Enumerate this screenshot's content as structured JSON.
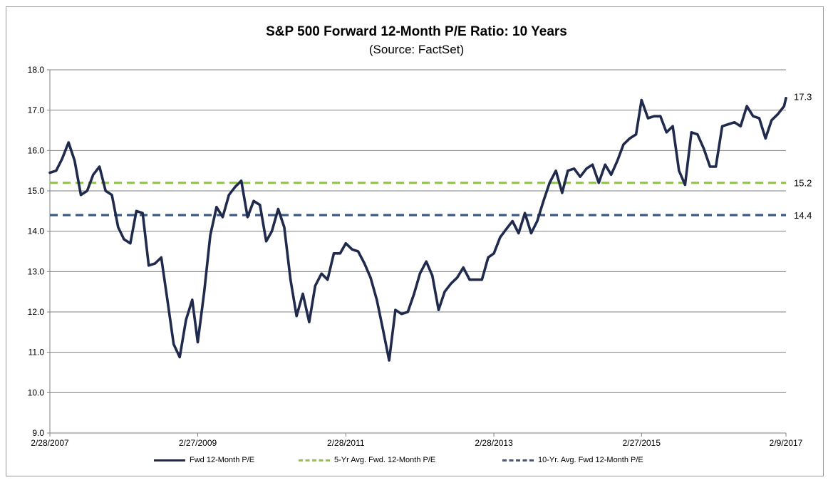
{
  "chart_data": {
    "type": "line",
    "title": "S&P 500 Forward 12-Month P/E Ratio: 10 Years",
    "subtitle": "(Source: FactSet)",
    "xlabel": "",
    "ylabel": "",
    "ylim": [
      9.0,
      18.0
    ],
    "y_ticks": [
      "9.0",
      "10.0",
      "11.0",
      "12.0",
      "13.0",
      "14.0",
      "15.0",
      "16.0",
      "17.0",
      "18.0"
    ],
    "x_tick_labels": [
      "2/28/2007",
      "2/27/2009",
      "2/28/2011",
      "2/28/2013",
      "2/27/2015",
      "2/9/2017"
    ],
    "grid": true,
    "legend_placement": "bottom",
    "series": [
      {
        "name": "Fwd 12-Month P/E",
        "color": "#1f2a4d",
        "style": "solid",
        "x": [
          "2007-02-28",
          "2007-03-31",
          "2007-04-30",
          "2007-05-31",
          "2007-06-30",
          "2007-07-31",
          "2007-08-31",
          "2007-09-30",
          "2007-10-31",
          "2007-11-30",
          "2007-12-31",
          "2008-01-31",
          "2008-02-29",
          "2008-03-31",
          "2008-04-30",
          "2008-05-31",
          "2008-06-30",
          "2008-07-31",
          "2008-08-31",
          "2008-09-30",
          "2008-10-31",
          "2008-11-30",
          "2008-12-31",
          "2009-01-31",
          "2009-02-27",
          "2009-03-31",
          "2009-04-30",
          "2009-05-31",
          "2009-06-30",
          "2009-07-31",
          "2009-08-31",
          "2009-09-30",
          "2009-10-31",
          "2009-11-30",
          "2009-12-31",
          "2010-01-31",
          "2010-02-28",
          "2010-03-31",
          "2010-04-30",
          "2010-05-31",
          "2010-06-30",
          "2010-07-31",
          "2010-08-31",
          "2010-09-30",
          "2010-10-31",
          "2010-11-30",
          "2010-12-31",
          "2011-01-31",
          "2011-02-28",
          "2011-03-31",
          "2011-04-30",
          "2011-05-31",
          "2011-06-30",
          "2011-07-31",
          "2011-08-31",
          "2011-09-30",
          "2011-10-31",
          "2011-11-30",
          "2011-12-31",
          "2012-01-31",
          "2012-02-29",
          "2012-03-31",
          "2012-04-30",
          "2012-05-31",
          "2012-06-30",
          "2012-07-31",
          "2012-08-31",
          "2012-09-30",
          "2012-10-31",
          "2012-11-30",
          "2012-12-31",
          "2013-01-31",
          "2013-02-28",
          "2013-03-31",
          "2013-04-30",
          "2013-05-31",
          "2013-06-30",
          "2013-07-31",
          "2013-08-31",
          "2013-09-30",
          "2013-10-31",
          "2013-11-30",
          "2013-12-31",
          "2014-01-31",
          "2014-02-28",
          "2014-03-31",
          "2014-04-30",
          "2014-05-31",
          "2014-06-30",
          "2014-07-31",
          "2014-08-31",
          "2014-09-30",
          "2014-10-31",
          "2014-11-30",
          "2014-12-31",
          "2015-01-31",
          "2015-02-27",
          "2015-03-31",
          "2015-04-30",
          "2015-05-31",
          "2015-06-30",
          "2015-07-31",
          "2015-08-31",
          "2015-09-30",
          "2015-10-31",
          "2015-11-30",
          "2015-12-31",
          "2016-01-31",
          "2016-02-29",
          "2016-03-31",
          "2016-04-30",
          "2016-05-31",
          "2016-06-30",
          "2016-07-31",
          "2016-08-31",
          "2016-09-30",
          "2016-10-31",
          "2016-11-30",
          "2016-12-31",
          "2017-01-31",
          "2017-02-09"
        ],
        "values": [
          15.45,
          15.5,
          15.8,
          16.2,
          15.75,
          14.9,
          15.0,
          15.4,
          15.6,
          15.0,
          14.9,
          14.1,
          13.8,
          13.7,
          14.5,
          14.45,
          13.15,
          13.2,
          13.35,
          12.3,
          11.2,
          10.88,
          11.8,
          12.3,
          11.25,
          12.5,
          13.9,
          14.6,
          14.35,
          14.9,
          15.1,
          15.25,
          14.35,
          14.75,
          14.65,
          13.75,
          14.0,
          14.55,
          14.1,
          12.8,
          11.9,
          12.45,
          11.75,
          12.65,
          12.95,
          12.8,
          13.45,
          13.45,
          13.7,
          13.55,
          13.5,
          13.2,
          12.85,
          12.3,
          11.55,
          10.8,
          12.05,
          11.95,
          12.0,
          12.45,
          12.95,
          13.25,
          12.9,
          12.05,
          12.5,
          12.7,
          12.85,
          13.1,
          12.8,
          12.8,
          12.8,
          13.35,
          13.45,
          13.85,
          14.05,
          14.25,
          13.95,
          14.45,
          13.95,
          14.25,
          14.75,
          15.2,
          15.5,
          14.95,
          15.5,
          15.55,
          15.35,
          15.55,
          15.65,
          15.2,
          15.65,
          15.4,
          15.75,
          16.15,
          16.3,
          16.4,
          17.25,
          16.8,
          16.85,
          16.85,
          16.45,
          16.6,
          15.5,
          15.15,
          16.45,
          16.4,
          16.05,
          15.6,
          15.6,
          16.6,
          16.65,
          16.7,
          16.6,
          17.1,
          16.85,
          16.8,
          16.3,
          16.75,
          16.9,
          17.1,
          17.3
        ]
      },
      {
        "name": "5-Yr Avg. Fwd. 12-Month P/E",
        "color": "#8fc93a",
        "style": "dashed",
        "constant": 15.2
      },
      {
        "name": "10-Yr. Avg. Fwd 12-Month P/E",
        "color": "#3e5a80",
        "style": "dashed",
        "constant": 14.4
      }
    ],
    "end_labels": [
      "17.3",
      "15.2",
      "14.4"
    ]
  }
}
